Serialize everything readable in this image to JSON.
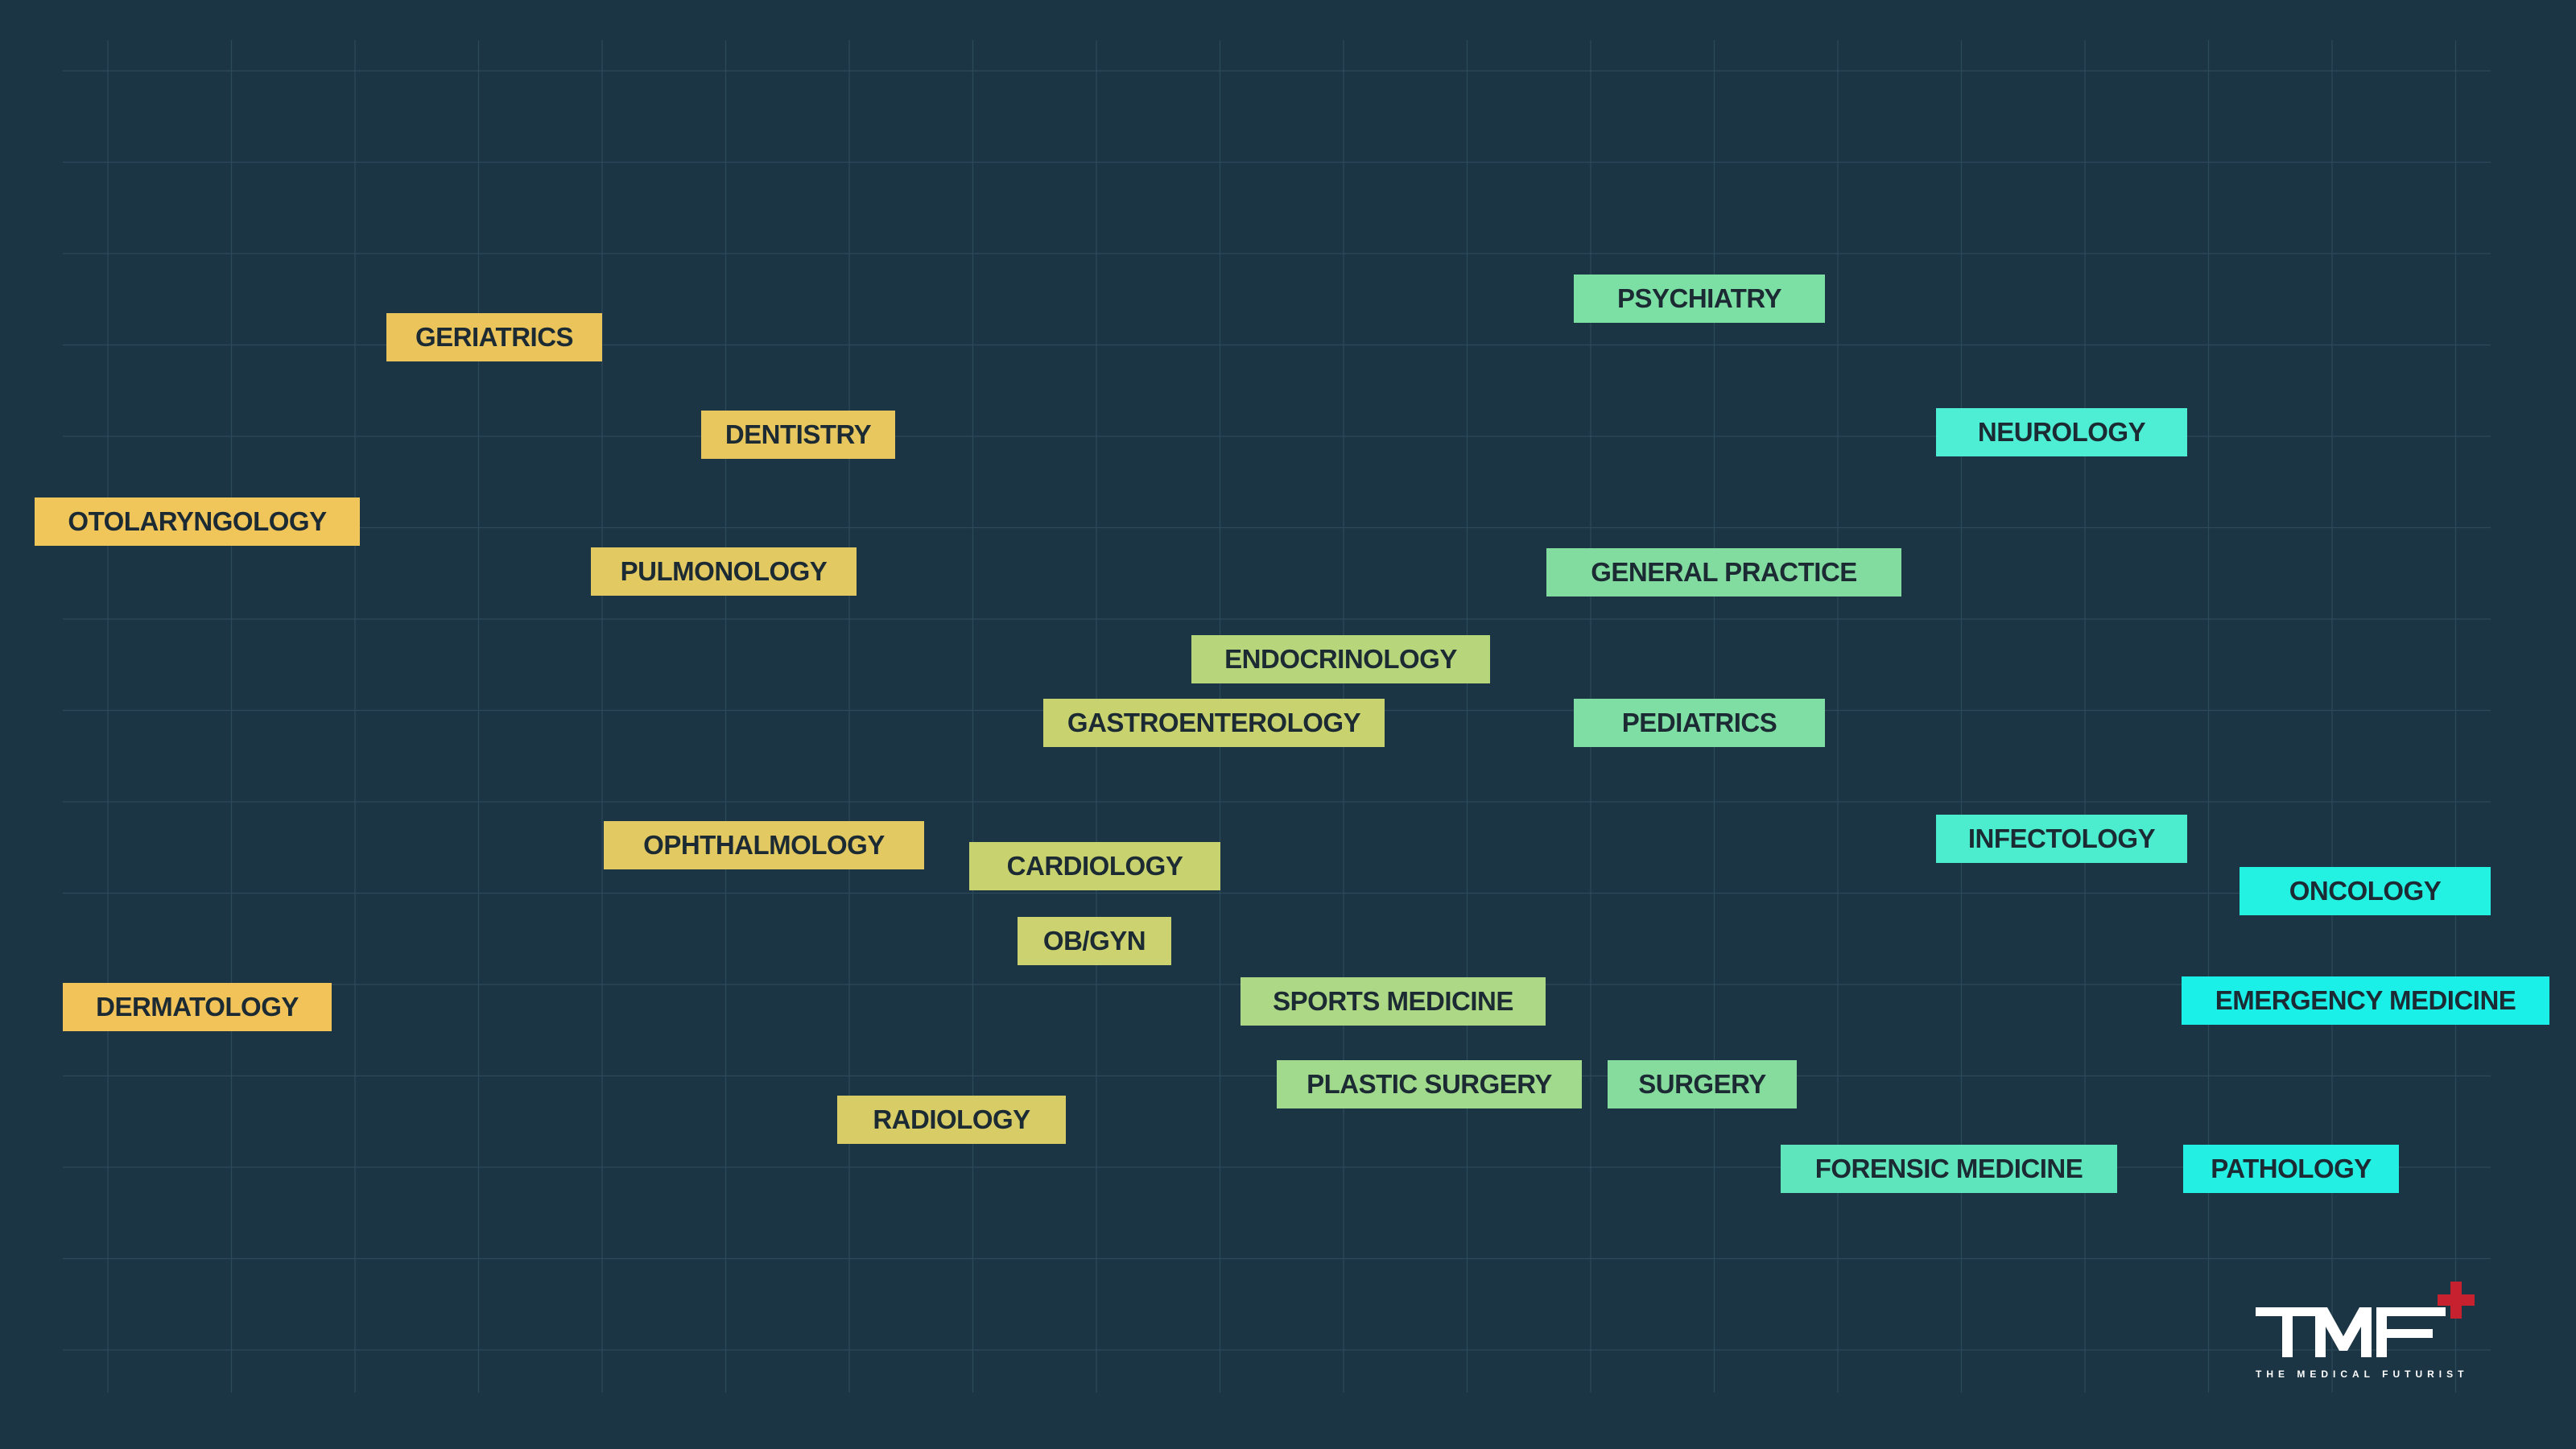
{
  "specialties": [
    {
      "id": "psychiatry",
      "label": "PSYCHIATRY",
      "color": "#7cdfa4"
    },
    {
      "id": "geriatrics",
      "label": "GERIATRICS",
      "color": "#ebc55b"
    },
    {
      "id": "dentistry",
      "label": "DENTISTRY",
      "color": "#e8c85e"
    },
    {
      "id": "neurology",
      "label": "NEUROLOGY",
      "color": "#4deed4"
    },
    {
      "id": "otolaryngology",
      "label": "OTOLARYNGOLOGY",
      "color": "#f0c55a"
    },
    {
      "id": "pulmonology",
      "label": "PULMONOLOGY",
      "color": "#e3c962"
    },
    {
      "id": "general-practice",
      "label": "GENERAL PRACTICE",
      "color": "#82dca0"
    },
    {
      "id": "endocrinology",
      "label": "ENDOCRINOLOGY",
      "color": "#b7d67c"
    },
    {
      "id": "gastroenterology",
      "label": "GASTROENTEROLOGY",
      "color": "#c8d26f"
    },
    {
      "id": "pediatrics",
      "label": "PEDIATRICS",
      "color": "#7edea4"
    },
    {
      "id": "infectology",
      "label": "INFECTOLOGY",
      "color": "#4ceccf"
    },
    {
      "id": "ophthalmology",
      "label": "OPHTHALMOLOGY",
      "color": "#e3c962"
    },
    {
      "id": "cardiology",
      "label": "CARDIOLOGY",
      "color": "#c8d26f"
    },
    {
      "id": "oncology",
      "label": "ONCOLOGY",
      "color": "#23f2e3"
    },
    {
      "id": "ob-gyn",
      "label": "OB/GYN",
      "color": "#cbd26f"
    },
    {
      "id": "sports-medicine",
      "label": "SPORTS MEDICINE",
      "color": "#add885"
    },
    {
      "id": "emergency-medicine",
      "label": "EMERGENCY MEDICINE",
      "color": "#1af0e8"
    },
    {
      "id": "dermatology",
      "label": "DERMATOLOGY",
      "color": "#f1c359"
    },
    {
      "id": "plastic-surgery",
      "label": "PLASTIC SURGERY",
      "color": "#a1da8c"
    },
    {
      "id": "surgery",
      "label": "SURGERY",
      "color": "#86dc9d"
    },
    {
      "id": "radiology",
      "label": "RADIOLOGY",
      "color": "#d8cc66"
    },
    {
      "id": "forensic-medicine",
      "label": "FORENSIC MEDICINE",
      "color": "#5ee5bc"
    },
    {
      "id": "pathology",
      "label": "PATHOLOGY",
      "color": "#23f0e2"
    }
  ],
  "logo": {
    "text": "TMF",
    "subtitle": "THE MEDICAL FUTURIST",
    "cross_color": "#c7202f",
    "text_color": "#ffffff"
  },
  "colors": {
    "background": "#1b3545",
    "grid_line": "#2d4a5b",
    "label_text": "#1b2a33"
  }
}
